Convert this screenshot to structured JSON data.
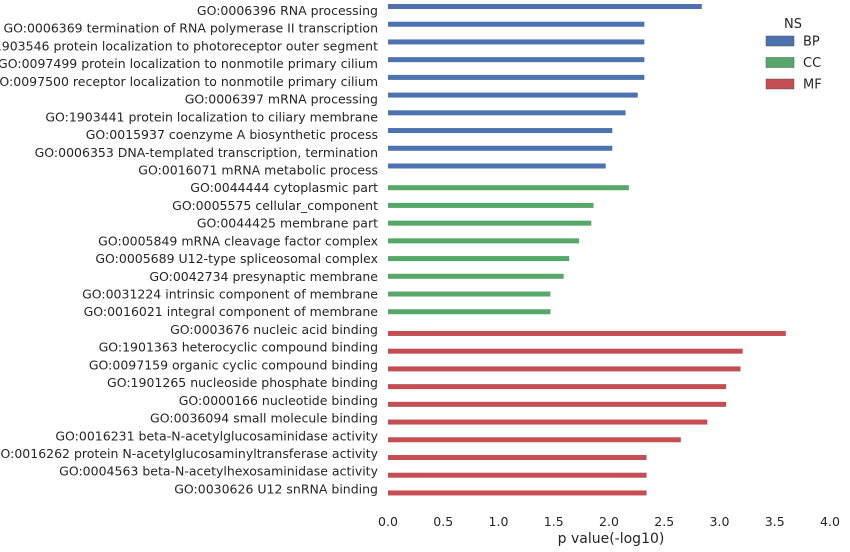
{
  "chart_data": {
    "type": "bar",
    "orientation": "horizontal",
    "xlabel": "p value(-log10)",
    "xlim": [
      0.0,
      4.0
    ],
    "xticks": [
      "0.0",
      "0.5",
      "1.0",
      "1.5",
      "2.0",
      "2.5",
      "3.0",
      "3.5",
      "4.0"
    ],
    "grid": false,
    "legend": {
      "title": "NS",
      "placement": "top-right",
      "entries": [
        {
          "name": "BP",
          "color": "#4C72B0"
        },
        {
          "name": "CC",
          "color": "#55A868"
        },
        {
          "name": "MF",
          "color": "#C44E52"
        }
      ]
    },
    "categories": [
      {
        "label": "GO:0006396 RNA processing",
        "value": 2.84,
        "ns": "BP"
      },
      {
        "label": "GO:0006369 termination of RNA polymerase II transcription",
        "value": 2.32,
        "ns": "BP"
      },
      {
        "label": "GO:1903546 protein localization to photoreceptor outer segment",
        "value": 2.32,
        "ns": "BP"
      },
      {
        "label": "GO:0097499 protein localization to nonmotile primary cilium",
        "value": 2.32,
        "ns": "BP"
      },
      {
        "label": "GO:0097500 receptor localization to nonmotile primary cilium",
        "value": 2.32,
        "ns": "BP"
      },
      {
        "label": "GO:0006397 mRNA processing",
        "value": 2.26,
        "ns": "BP"
      },
      {
        "label": "GO:1903441 protein localization to ciliary membrane",
        "value": 2.15,
        "ns": "BP"
      },
      {
        "label": "GO:0015937 coenzyme A biosynthetic process",
        "value": 2.03,
        "ns": "BP"
      },
      {
        "label": "GO:0006353 DNA-templated transcription, termination",
        "value": 2.03,
        "ns": "BP"
      },
      {
        "label": "GO:0016071 mRNA metabolic process",
        "value": 1.97,
        "ns": "BP"
      },
      {
        "label": "GO:0044444 cytoplasmic part",
        "value": 2.18,
        "ns": "CC"
      },
      {
        "label": "GO:0005575 cellular_component",
        "value": 1.86,
        "ns": "CC"
      },
      {
        "label": "GO:0044425 membrane part",
        "value": 1.84,
        "ns": "CC"
      },
      {
        "label": "GO:0005849 mRNA cleavage factor complex",
        "value": 1.73,
        "ns": "CC"
      },
      {
        "label": "GO:0005689 U12-type spliceosomal complex",
        "value": 1.64,
        "ns": "CC"
      },
      {
        "label": "GO:0042734 presynaptic membrane",
        "value": 1.59,
        "ns": "CC"
      },
      {
        "label": "GO:0031224 intrinsic component of membrane",
        "value": 1.47,
        "ns": "CC"
      },
      {
        "label": "GO:0016021 integral component of membrane",
        "value": 1.47,
        "ns": "CC"
      },
      {
        "label": "GO:0003676 nucleic acid binding",
        "value": 3.6,
        "ns": "MF"
      },
      {
        "label": "GO:1901363 heterocyclic compound binding",
        "value": 3.21,
        "ns": "MF"
      },
      {
        "label": "GO:0097159 organic cyclic compound binding",
        "value": 3.19,
        "ns": "MF"
      },
      {
        "label": "GO:1901265 nucleoside phosphate binding",
        "value": 3.06,
        "ns": "MF"
      },
      {
        "label": "GO:0000166 nucleotide binding",
        "value": 3.06,
        "ns": "MF"
      },
      {
        "label": "GO:0036094 small molecule binding",
        "value": 2.89,
        "ns": "MF"
      },
      {
        "label": "GO:0016231 beta-N-acetylglucosaminidase activity",
        "value": 2.65,
        "ns": "MF"
      },
      {
        "label": "GO:0016262 protein N-acetylglucosaminyltransferase activity",
        "value": 2.34,
        "ns": "MF"
      },
      {
        "label": "GO:0004563 beta-N-acetylhexosaminidase activity",
        "value": 2.34,
        "ns": "MF"
      },
      {
        "label": "GO:0030626 U12 snRNA binding",
        "value": 2.34,
        "ns": "MF"
      }
    ]
  }
}
